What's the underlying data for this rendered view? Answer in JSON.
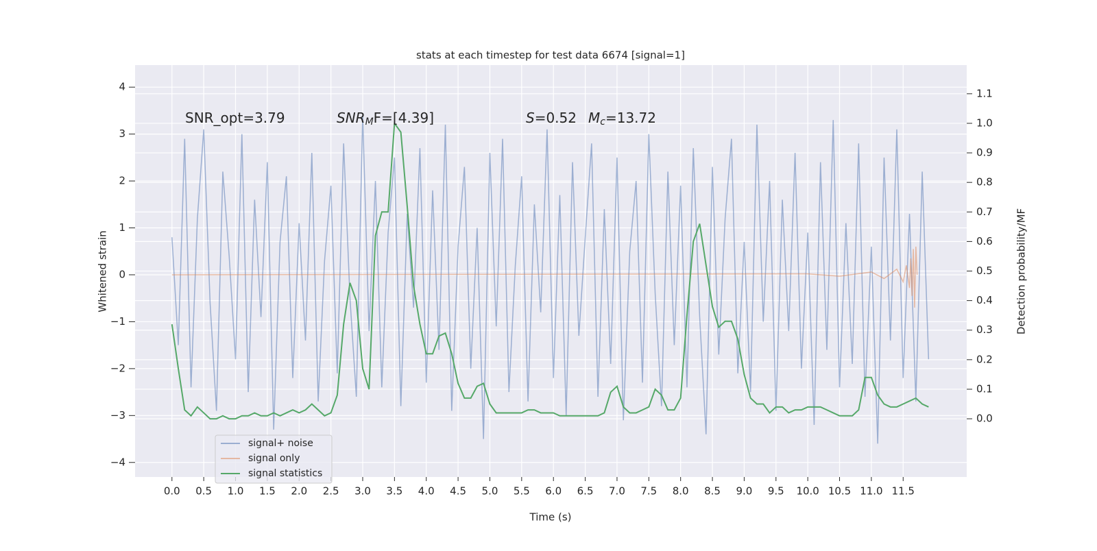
{
  "chart_data": {
    "type": "line",
    "title": "stats at each timestep for test data 6674 [signal=1]",
    "xlabel": "Time (s)",
    "ylabel": "Whitened strain",
    "y2label": "Detection probability/MF",
    "annotations": [
      [
        "SNR_opt=3.79"
      ],
      [
        "SNR",
        "M",
        "F=[4.39]"
      ],
      [
        "S",
        "=0.52"
      ],
      [
        "M",
        "c",
        "=13.72"
      ]
    ],
    "x": [
      0,
      0.1,
      0.2,
      0.3,
      0.4,
      0.5,
      0.6,
      0.7,
      0.8,
      0.9,
      1,
      1.1,
      1.2,
      1.3,
      1.4,
      1.5,
      1.6,
      1.7,
      1.8,
      1.9,
      2,
      2.1,
      2.2,
      2.3,
      2.4,
      2.5,
      2.6,
      2.7,
      2.8,
      2.9,
      3,
      3.1,
      3.2,
      3.3,
      3.4,
      3.5,
      3.6,
      3.7,
      3.8,
      3.9,
      4,
      4.1,
      4.2,
      4.3,
      4.4,
      4.5,
      4.6,
      4.7,
      4.8,
      4.9,
      5,
      5.1,
      5.2,
      5.3,
      5.4,
      5.5,
      5.6,
      5.7,
      5.8,
      5.9,
      6,
      6.1,
      6.2,
      6.3,
      6.4,
      6.5,
      6.6,
      6.7,
      6.8,
      6.9,
      7,
      7.1,
      7.2,
      7.3,
      7.4,
      7.5,
      7.6,
      7.7,
      7.8,
      7.9,
      8,
      8.1,
      8.2,
      8.3,
      8.4,
      8.5,
      8.6,
      8.7,
      8.8,
      8.9,
      9,
      9.1,
      9.2,
      9.3,
      9.4,
      9.5,
      9.6,
      9.7,
      9.8,
      9.9,
      10,
      10.1,
      10.2,
      10.3,
      10.4,
      10.5,
      10.6,
      10.7,
      10.8,
      10.9,
      11,
      11.1,
      11.2,
      11.3,
      11.4,
      11.5,
      11.6,
      11.7,
      11.8,
      11.9
    ],
    "series": [
      {
        "name": "signal+ noise",
        "color": "#4c72b0",
        "opacity": 0.5,
        "values": [
          0.8,
          -1.5,
          2.9,
          -2.4,
          1.2,
          3.1,
          -0.6,
          -2.9,
          2.2,
          0.4,
          -1.8,
          3.0,
          -2.5,
          1.6,
          -0.9,
          2.4,
          -3.3,
          0.7,
          2.1,
          -2.2,
          1.1,
          -1.4,
          2.6,
          -2.7,
          0.3,
          1.9,
          -2.1,
          2.8,
          -0.5,
          -2.6,
          3.4,
          -1.2,
          2.0,
          -2.4,
          0.9,
          2.5,
          -2.8,
          1.3,
          -0.7,
          2.7,
          -2.3,
          1.8,
          -1.6,
          3.2,
          -2.9,
          0.6,
          2.3,
          -2.0,
          1.0,
          -3.5,
          2.6,
          -1.1,
          2.9,
          -2.5,
          0.2,
          2.1,
          -2.7,
          1.5,
          -0.8,
          3.1,
          -2.2,
          1.7,
          -3.0,
          2.4,
          -1.3,
          0.8,
          2.8,
          -2.6,
          1.4,
          -1.9,
          2.5,
          -3.1,
          0.5,
          2.0,
          -2.3,
          3.0,
          -0.4,
          -2.8,
          2.2,
          -1.5,
          1.9,
          -2.4,
          2.7,
          -0.9,
          -3.4,
          2.3,
          -1.7,
          1.2,
          2.9,
          -2.1,
          0.7,
          -2.5,
          3.2,
          -1.0,
          2.0,
          -2.9,
          1.6,
          -1.2,
          2.6,
          -2.0,
          0.9,
          -3.2,
          2.4,
          -1.6,
          3.3,
          -2.4,
          1.1,
          -1.9,
          2.8,
          -2.6,
          0.6,
          -3.6,
          2.5,
          -1.4,
          3.1,
          -2.2,
          1.3,
          -2.7,
          2.2,
          -1.8
        ]
      },
      {
        "name": "signal only",
        "color": "#dd8452",
        "opacity": 0.5,
        "x": [
          0,
          10,
          10.5,
          11,
          11.2,
          11.4,
          11.5,
          11.55,
          11.6,
          11.62,
          11.64,
          11.66,
          11.68,
          11.7,
          11.72
        ],
        "values": [
          0,
          0.02,
          -0.03,
          0.06,
          -0.08,
          0.12,
          -0.15,
          0.2,
          -0.28,
          0.35,
          -0.45,
          0.55,
          -0.7,
          0.6,
          0
        ]
      },
      {
        "name": "signal statistics",
        "color": "#55a868",
        "opacity": 1,
        "axis": "y2",
        "values": [
          0.32,
          0.17,
          0.03,
          0.01,
          0.04,
          0.02,
          0,
          0,
          0.01,
          0,
          0,
          0.01,
          0.01,
          0.02,
          0.01,
          0.01,
          0.02,
          0.01,
          0.02,
          0.03,
          0.02,
          0.03,
          0.05,
          0.03,
          0.01,
          0.02,
          0.08,
          0.32,
          0.46,
          0.4,
          0.17,
          0.1,
          0.62,
          0.7,
          0.7,
          1.0,
          0.97,
          0.72,
          0.45,
          0.32,
          0.22,
          0.22,
          0.28,
          0.29,
          0.22,
          0.12,
          0.07,
          0.07,
          0.11,
          0.12,
          0.05,
          0.02,
          0.02,
          0.02,
          0.02,
          0.02,
          0.03,
          0.03,
          0.02,
          0.02,
          0.02,
          0.01,
          0.01,
          0.01,
          0.01,
          0.01,
          0.01,
          0.01,
          0.02,
          0.09,
          0.11,
          0.04,
          0.02,
          0.02,
          0.03,
          0.04,
          0.1,
          0.08,
          0.03,
          0.03,
          0.07,
          0.35,
          0.6,
          0.66,
          0.52,
          0.38,
          0.31,
          0.33,
          0.33,
          0.27,
          0.15,
          0.07,
          0.05,
          0.05,
          0.02,
          0.04,
          0.04,
          0.02,
          0.03,
          0.03,
          0.04,
          0.04,
          0.04,
          0.03,
          0.02,
          0.01,
          0.01,
          0.01,
          0.03,
          0.14,
          0.14,
          0.08,
          0.05,
          0.04,
          0.04,
          0.05,
          0.06,
          0.07,
          0.05,
          0.04
        ]
      }
    ],
    "xlim": [
      -0.58,
      12.5
    ],
    "xticks": [
      {
        "value": 0,
        "label": "0.0"
      },
      0.5,
      {
        "value": 1,
        "label": "1.0"
      },
      1.5,
      {
        "value": 2,
        "label": "2.0"
      },
      2.5,
      {
        "value": 3,
        "label": "3.0"
      },
      3.5,
      {
        "value": 4,
        "label": "4.0"
      },
      4.5,
      {
        "value": 5,
        "label": "5.0"
      },
      5.5,
      {
        "value": 6,
        "label": "6.0"
      },
      6.5,
      {
        "value": 7,
        "label": "7.0"
      },
      7.5,
      {
        "value": 8,
        "label": "8.0"
      },
      8.5,
      {
        "value": 9,
        "label": "9.0"
      },
      9.5,
      {
        "value": 10,
        "label": "10.0"
      },
      10.5,
      {
        "value": 11,
        "label": "11.0"
      },
      11.5
    ],
    "ylim": [
      -4.31,
      4.47
    ],
    "yticks": [
      {
        "value": -4,
        "label": "−4"
      },
      {
        "value": -3,
        "label": "−3"
      },
      {
        "value": -2,
        "label": "−2"
      },
      {
        "value": -1,
        "label": "−1"
      },
      0,
      1,
      2,
      3,
      4
    ],
    "y2lim": [
      -0.197,
      1.197
    ],
    "y2ticks": [
      {
        "value": 0,
        "label": "0.0"
      },
      0.1,
      0.2,
      0.3,
      0.4,
      0.5,
      0.6,
      0.7,
      0.8,
      0.9,
      {
        "value": 1,
        "label": "1.0"
      },
      1.1
    ],
    "grid": true,
    "legend": "lower left"
  }
}
